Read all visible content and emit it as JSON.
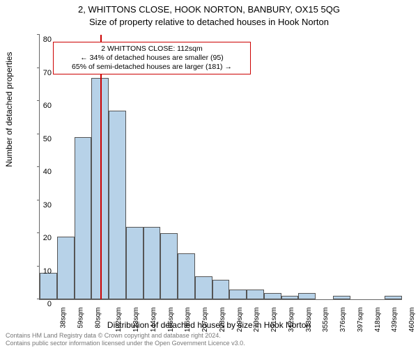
{
  "title_line1": "2, WHITTONS CLOSE, HOOK NORTON, BANBURY, OX15 5QG",
  "title_line2": "Size of property relative to detached houses in Hook Norton",
  "ylabel": "Number of detached properties",
  "xlabel": "Distribution of detached houses by size in Hook Norton",
  "annotation": {
    "line1": "2 WHITTONS CLOSE: 112sqm",
    "line2": "← 34% of detached houses are smaller (95)",
    "line3": "65% of semi-detached houses are larger (181) →"
  },
  "footer_line1": "Contains HM Land Registry data © Crown copyright and database right 2024.",
  "footer_line2": "Contains public sector information licensed under the Open Government Licence v3.0.",
  "chart": {
    "type": "histogram",
    "ylim": [
      0,
      80
    ],
    "ytick_step": 10,
    "x_start": 38,
    "x_step": 21,
    "n_bins": 21,
    "vline_x": 112,
    "vline_color": "#cc0000",
    "bar_fill": "#b7d2e8",
    "bar_border": "#555555",
    "background": "#ffffff",
    "values": [
      8,
      19,
      49,
      67,
      57,
      22,
      22,
      20,
      14,
      7,
      6,
      3,
      3,
      2,
      1,
      2,
      0,
      1,
      0,
      0,
      1
    ],
    "x_labels": [
      "38sqm",
      "59sqm",
      "80sqm",
      "102sqm",
      "123sqm",
      "144sqm",
      "165sqm",
      "186sqm",
      "207sqm",
      "228sqm",
      "249sqm",
      "270sqm",
      "291sqm",
      "312sqm",
      "333sqm",
      "355sqm",
      "376sqm",
      "397sqm",
      "418sqm",
      "439sqm",
      "460sqm"
    ],
    "title_fontsize": 13,
    "label_fontsize": 12,
    "tick_fontsize": 11,
    "annotation_border": "#cc0000"
  }
}
